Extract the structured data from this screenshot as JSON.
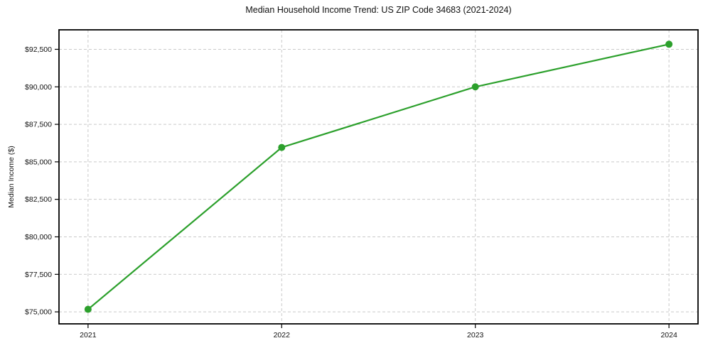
{
  "chart_data": {
    "type": "line",
    "title": "Median Household Income Trend: US ZIP Code 34683 (2021-2024)",
    "xlabel": "",
    "ylabel": "Median Income ($)",
    "categories": [
      2021,
      2022,
      2023,
      2024
    ],
    "series": [
      {
        "name": "Median Income ($)",
        "values": [
          75170,
          85960,
          90000,
          92840
        ]
      }
    ],
    "xticks": [
      2021,
      2022,
      2023,
      2024
    ],
    "xtick_labels": [
      "2021",
      "2022",
      "2023",
      "2024"
    ],
    "yticks": [
      75000,
      77500,
      80000,
      82500,
      85000,
      87500,
      90000,
      92500
    ],
    "ytick_labels": [
      "$75,000",
      "$77,500",
      "$80,000",
      "$82,500",
      "$85,000",
      "$87,500",
      "$90,000",
      "$92,500"
    ],
    "xlim": [
      2020.85,
      2024.15
    ],
    "ylim": [
      74200,
      93800
    ],
    "grid": true,
    "grid_style": "dashed",
    "legend_position": "none",
    "colors": {
      "line": "#2ca02c",
      "marker": "#2ca02c",
      "grid": "#c9c9c9",
      "spine": "#000000",
      "text": "#111111",
      "background": "#ffffff"
    }
  }
}
